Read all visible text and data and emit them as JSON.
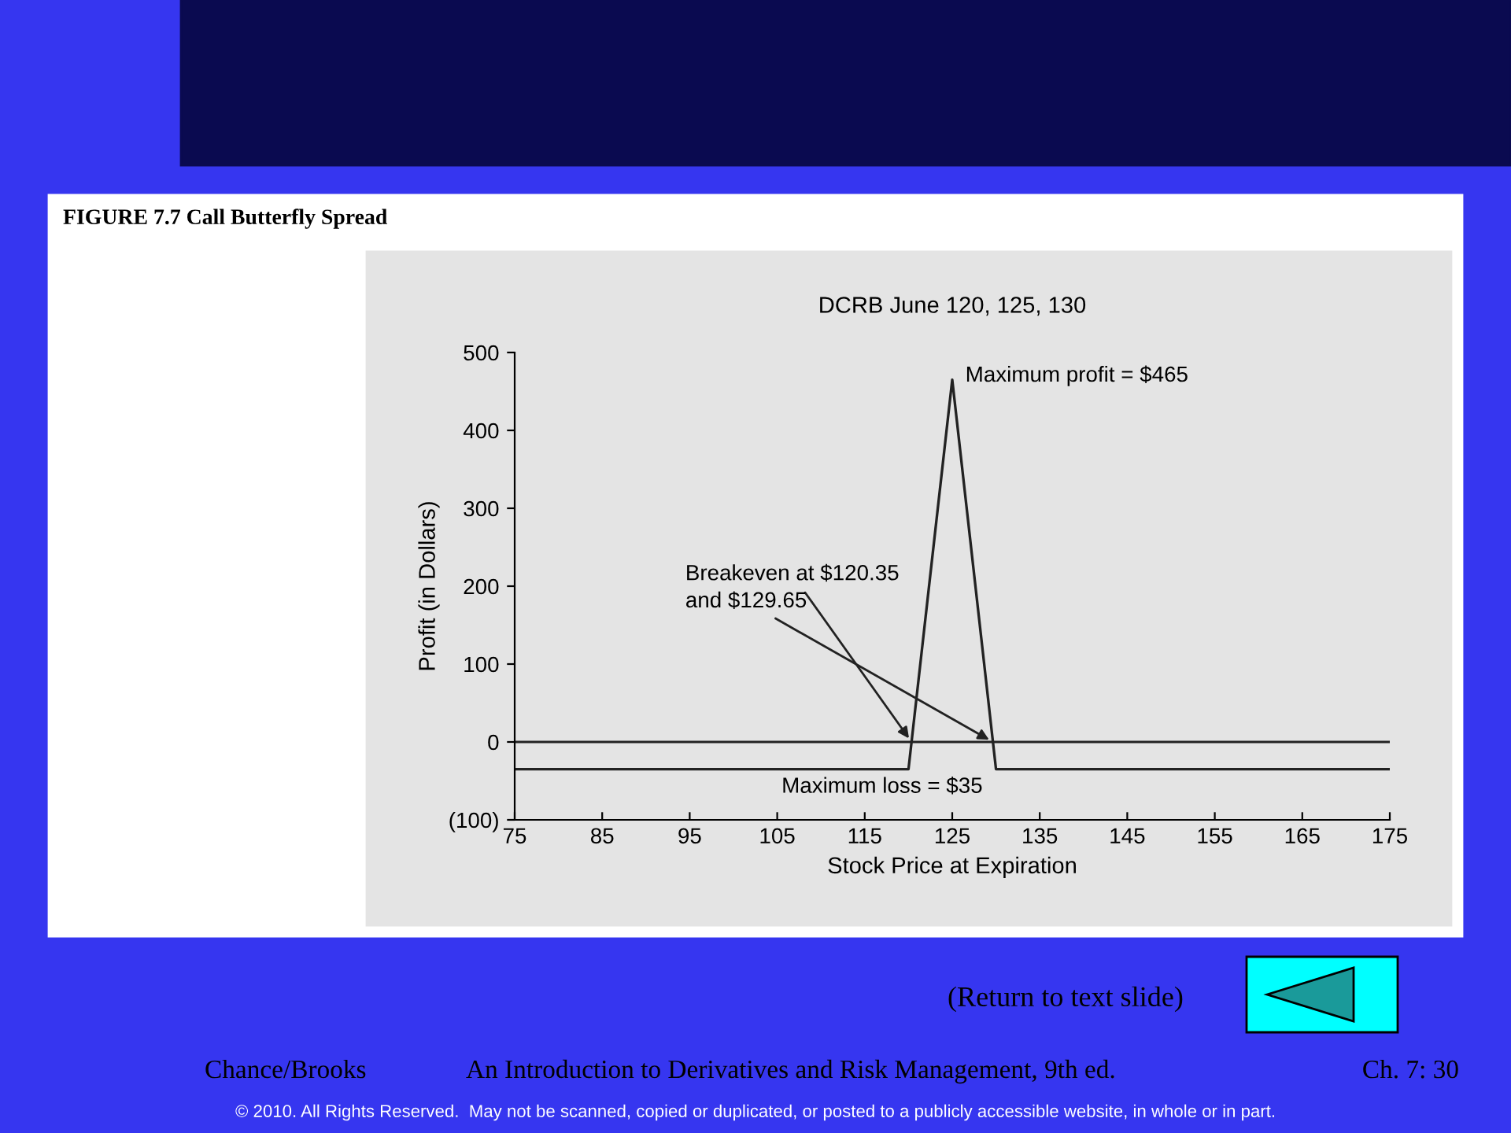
{
  "chart_data": {
    "type": "line",
    "title": "FIGURE 7.7 Call Butterfly Spread",
    "subtitle": "DCRB June 120, 125, 130",
    "xlabel": "Stock Price at Expiration",
    "ylabel": "Profit (in Dollars)",
    "x": [
      75,
      120,
      125,
      130,
      175
    ],
    "series": [
      {
        "color": "#222222",
        "values": [
          -35,
          -35,
          465,
          -35,
          -35
        ]
      }
    ],
    "xlim": [
      75,
      175
    ],
    "xticks": [
      75,
      85,
      95,
      105,
      115,
      125,
      135,
      145,
      155,
      165,
      175
    ],
    "ylim": [
      -100,
      500
    ],
    "yticks": [
      {
        "value": -100,
        "label": "(100)"
      },
      0,
      100,
      200,
      300,
      400,
      500
    ],
    "ref_lines": [
      {
        "axis": "y",
        "value": 0,
        "color": "#222222"
      }
    ],
    "annotations": [
      {
        "text": "Maximum profit = $465",
        "x": 125,
        "y": 465
      },
      {
        "text": "Breakeven at $120.35",
        "x": 120.35,
        "y": 0
      },
      {
        "text": "and $129.65",
        "x": 129.65,
        "y": 0
      },
      {
        "text": "Maximum loss = $35",
        "x": 130,
        "y": -35
      },
      "(Return to text slide)",
      "Chance/Brooks",
      "An Introduction to Derivatives and Risk Management, 9th ed.",
      "Ch. 7: 30",
      "© 2010. All Rights Reserved.  May not be scanned, copied or duplicated, or posted to a publicly accessible website, in whole or in part."
    ],
    "grid": false,
    "legend": false,
    "marker": "none",
    "line_style": "solid"
  }
}
